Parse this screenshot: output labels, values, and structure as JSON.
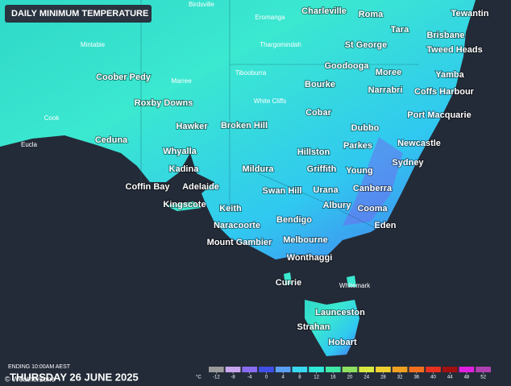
{
  "title": "DAILY MINIMUM TEMPERATURE",
  "places": [
    "Birdsville",
    "Charleville",
    "Roma",
    "Tewantin",
    "Eromanga",
    "Tara",
    "Brisbane",
    "Mintabie",
    "Thargomindah",
    "St George",
    "Tweed Heads",
    "Goodooga",
    "Moree",
    "Yamba",
    "Coober Pedy",
    "Marree",
    "Tibooburra",
    "Bourke",
    "Narrabri",
    "Coffs Harbour",
    "White Cliffs",
    "Roxby Downs",
    "Cobar",
    "Port Macquarie",
    "Cook",
    "Hawker",
    "Broken Hill",
    "Dubbo",
    "Eucla",
    "Ceduna",
    "Newcastle",
    "Whyalla",
    "Hillston",
    "Parkes",
    "Sydney",
    "Kadina",
    "Mildura",
    "Griffith",
    "Young",
    "Coffin Bay",
    "Adelaide",
    "Swan Hill",
    "Urana",
    "Canberra",
    "Kingscote",
    "Keith",
    "Albury",
    "Cooma",
    "Bendigo",
    "Naracoorte",
    "Eden",
    "Mount Gambier",
    "Melbourne",
    "Wonthaggi",
    "Currie",
    "Whitemark",
    "Launceston",
    "Strahan",
    "Hobart"
  ],
  "footer": {
    "ending": "ENDING 10:00AM AEST",
    "date": "THURSDAY 26 JUNE 2025",
    "brand": "© Weatherzone"
  },
  "legend": {
    "unit": "°C",
    "ticks": [
      -12,
      -8,
      -4,
      0,
      4,
      8,
      12,
      16,
      20,
      24,
      28,
      32,
      36,
      40,
      44,
      48,
      52
    ],
    "colors": [
      "#9a9a9a",
      "#c9a6f0",
      "#8a6bf0",
      "#3f4fe8",
      "#5aa0f5",
      "#38d8f0",
      "#2ee8d8",
      "#3fe8a8",
      "#8ee060",
      "#d8e840",
      "#f0d030",
      "#f0a020",
      "#f07020",
      "#e83020",
      "#a01010",
      "#e020e0",
      "#b040b0"
    ]
  }
}
